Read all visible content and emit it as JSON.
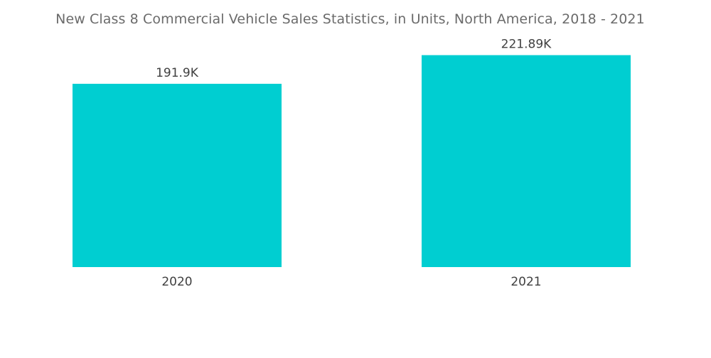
{
  "chart_data": {
    "type": "bar",
    "title": "New  Class 8 Commercial Vehicle Sales Statistics, in Units, North America, 2018 - 2021",
    "categories": [
      "2020",
      "2021"
    ],
    "values": [
      191.9,
      221.89
    ],
    "value_labels": [
      "191.9K",
      "221.89K"
    ],
    "xlabel": "",
    "ylabel": "",
    "ylim": [
      0,
      235
    ],
    "grid": false,
    "legend": "none",
    "bar_color": "#00CED1"
  }
}
